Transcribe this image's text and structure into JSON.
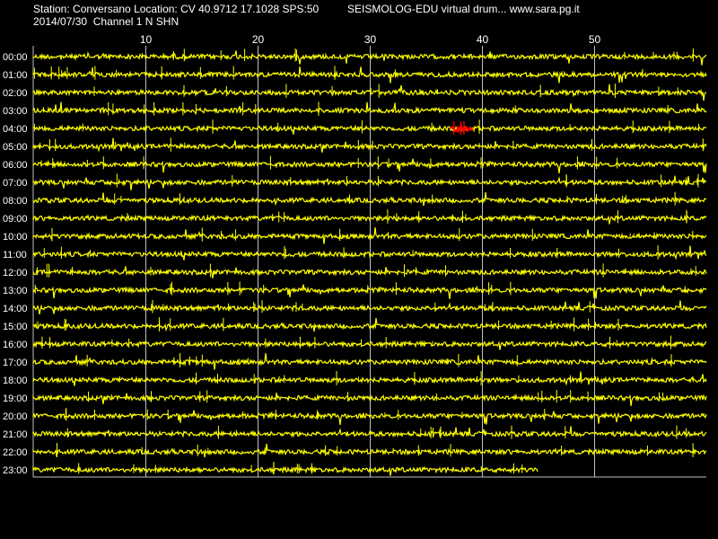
{
  "header": {
    "station_line": "Station: Conversano Location: CV 40.9712 17.1028 SPS:50",
    "date_line": "2014/07/30  Channel 1 N SHN",
    "site_line": "SEISMOLOG-EDU virtual drum... www.sara.pg.it"
  },
  "colors": {
    "background": "#000000",
    "trace": "#ffff00",
    "event": "#ff0000",
    "grid": "#c0c0c0",
    "text": "#ffffff"
  },
  "chart_data": {
    "type": "line",
    "title": "",
    "xlabel": "",
    "ylabel": "",
    "x_range_minutes": [
      0,
      60
    ],
    "x_ticks": [
      10,
      20,
      30,
      40,
      50
    ],
    "grid": true,
    "rows": [
      "00:00",
      "01:00",
      "02:00",
      "03:00",
      "04:00",
      "05:00",
      "06:00",
      "07:00",
      "08:00",
      "09:00",
      "10:00",
      "11:00",
      "12:00",
      "13:00",
      "14:00",
      "15:00",
      "16:00",
      "17:00",
      "18:00",
      "19:00",
      "20:00",
      "21:00",
      "22:00",
      "23:00"
    ],
    "last_row_end_minute": 45,
    "events": [
      {
        "row": "04:00",
        "start_minute": 37.2,
        "end_minute": 39.2
      }
    ]
  }
}
